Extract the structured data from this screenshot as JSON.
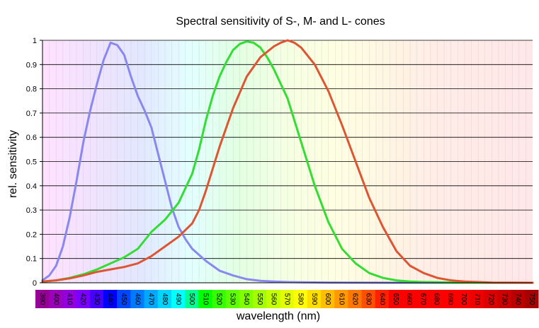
{
  "chart_data": {
    "type": "line",
    "title": "Spectral sensitivity of S-, M- and L- cones",
    "xlabel": "wavelength (nm)",
    "ylabel": "rel. sensitivity",
    "xlim": [
      390,
      750
    ],
    "ylim": [
      0,
      1
    ],
    "grid": "horizontal",
    "background": "visible spectrum",
    "y_ticks": [
      "0",
      "0.1",
      "0.2",
      "0.3",
      "0.4",
      "0.5",
      "0.6",
      "0.7",
      "0.8",
      "0.9",
      "1"
    ],
    "x_ticks": [
      "390",
      "400",
      "410",
      "420",
      "430",
      "440",
      "450",
      "460",
      "470",
      "480",
      "490",
      "500",
      "510",
      "520",
      "530",
      "540",
      "550",
      "560",
      "570",
      "580",
      "590",
      "600",
      "610",
      "620",
      "630",
      "640",
      "650",
      "660",
      "670",
      "680",
      "690",
      "700",
      "710",
      "720",
      "730",
      "740",
      "750"
    ],
    "series": [
      {
        "color": "#8888ee",
        "x": [
          390,
          395,
          400,
          405,
          410,
          415,
          420,
          425,
          430,
          435,
          440,
          445,
          450,
          455,
          460,
          465,
          470,
          475,
          480,
          485,
          490,
          495,
          500,
          510,
          520,
          530,
          540,
          550,
          560,
          570,
          580,
          600,
          650,
          700,
          750
        ],
        "y": [
          0.01,
          0.03,
          0.07,
          0.15,
          0.27,
          0.42,
          0.58,
          0.71,
          0.82,
          0.92,
          0.99,
          0.98,
          0.94,
          0.85,
          0.77,
          0.71,
          0.64,
          0.53,
          0.42,
          0.31,
          0.23,
          0.18,
          0.14,
          0.09,
          0.05,
          0.03,
          0.015,
          0.008,
          0.005,
          0.003,
          0.002,
          0.001,
          0,
          0,
          0
        ]
      },
      {
        "color": "#33dd33",
        "x": [
          390,
          400,
          410,
          420,
          430,
          440,
          450,
          460,
          470,
          480,
          490,
          500,
          505,
          510,
          515,
          520,
          525,
          530,
          535,
          540,
          545,
          550,
          555,
          560,
          570,
          580,
          590,
          600,
          610,
          620,
          630,
          640,
          650,
          660,
          670,
          680,
          690,
          700,
          720,
          750
        ],
        "y": [
          0.005,
          0.01,
          0.02,
          0.035,
          0.055,
          0.08,
          0.105,
          0.14,
          0.21,
          0.26,
          0.33,
          0.45,
          0.55,
          0.67,
          0.77,
          0.85,
          0.91,
          0.96,
          0.985,
          0.995,
          0.99,
          0.97,
          0.93,
          0.88,
          0.76,
          0.58,
          0.4,
          0.25,
          0.14,
          0.08,
          0.04,
          0.02,
          0.01,
          0.005,
          0.003,
          0.002,
          0.001,
          0,
          0,
          0
        ]
      },
      {
        "color": "#dd5533",
        "x": [
          390,
          400,
          410,
          420,
          430,
          440,
          450,
          460,
          470,
          480,
          490,
          500,
          505,
          510,
          520,
          530,
          540,
          550,
          560,
          565,
          570,
          575,
          580,
          590,
          600,
          610,
          620,
          630,
          640,
          650,
          660,
          670,
          680,
          690,
          700,
          710,
          720,
          750
        ],
        "y": [
          0.005,
          0.01,
          0.018,
          0.03,
          0.045,
          0.055,
          0.065,
          0.08,
          0.11,
          0.15,
          0.19,
          0.245,
          0.3,
          0.38,
          0.56,
          0.72,
          0.85,
          0.93,
          0.975,
          0.99,
          1.0,
          0.99,
          0.97,
          0.9,
          0.79,
          0.65,
          0.5,
          0.35,
          0.23,
          0.13,
          0.07,
          0.04,
          0.02,
          0.01,
          0.005,
          0.003,
          0.001,
          0
        ]
      }
    ]
  }
}
